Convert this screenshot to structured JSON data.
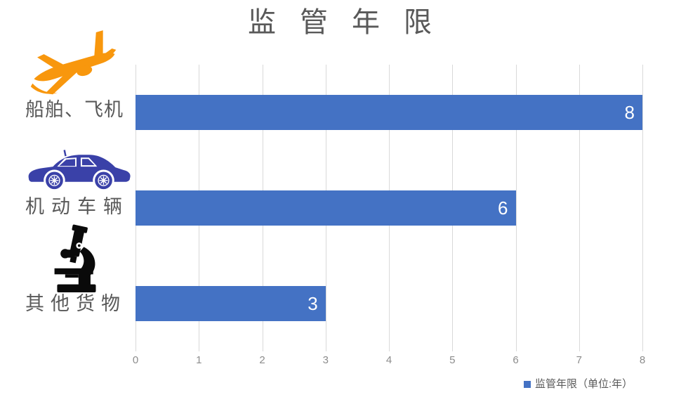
{
  "title": "监管年限",
  "chart_data": {
    "type": "bar",
    "orientation": "horizontal",
    "title": "监管年限",
    "categories": [
      "船舶、飞机",
      "机动车辆",
      "其他货物"
    ],
    "values": [
      8,
      6,
      3
    ],
    "value_labels": [
      "8",
      "6",
      "3"
    ],
    "xlim": [
      0,
      8
    ],
    "xticks": [
      "0",
      "1",
      "2",
      "3",
      "4",
      "5",
      "6",
      "7",
      "8"
    ],
    "grid": true,
    "legend_position": "bottom-right",
    "legend_label": "监管年限（单位:年）"
  },
  "icons": {
    "airplane": {
      "name": "airplane-icon",
      "color": "#F8970D"
    },
    "car": {
      "name": "car-icon",
      "color": "#3A41A8"
    },
    "microscope": {
      "name": "microscope-icon",
      "color": "#0A0A0A"
    }
  },
  "colors": {
    "background": "#FFFFFF",
    "bar": "#4472C4",
    "value_label": "#FFFFFF",
    "title": "#595959",
    "category_label": "#595959",
    "axis_label": "#8C8C8C",
    "gridline": "#D9D9D9",
    "legend_swatch": "#4472C4",
    "legend_text": "#595959"
  }
}
